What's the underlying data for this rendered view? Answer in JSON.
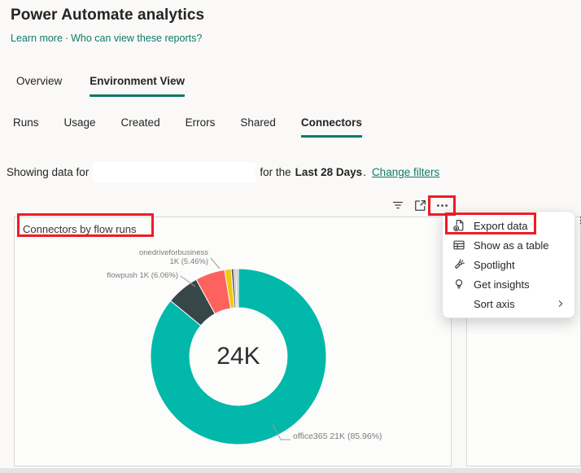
{
  "theme": {
    "accent": "#0e7a68",
    "annotation_red": "#ed1c24",
    "page_background": "#faf9f8",
    "panel_border": "#d8d8d8"
  },
  "header": {
    "title": "Power Automate analytics",
    "learn_more": "Learn more",
    "dot": "·",
    "who_can_view": "Who can view these reports?"
  },
  "tabs": {
    "overview": "Overview",
    "environment_view": "Environment View",
    "active": "Environment View"
  },
  "subtabs": {
    "runs": "Runs",
    "usage": "Usage",
    "created": "Created",
    "errors": "Errors",
    "shared": "Shared",
    "connectors": "Connectors",
    "active": "Connectors"
  },
  "filter_bar": {
    "prefix": "Showing data for",
    "environment_redacted": true,
    "middle": "for the",
    "range": "Last 28 Days",
    "period": ".",
    "change_filters": "Change filters"
  },
  "visual_toolbar": {
    "icons": [
      "filter-icon",
      "focus-mode-icon",
      "more-options-icon"
    ]
  },
  "context_menu": {
    "items": [
      {
        "icon": "export-data-icon",
        "label": "Export data",
        "annotated": true
      },
      {
        "icon": "show-as-table-icon",
        "label": "Show as a table"
      },
      {
        "icon": "spotlight-icon",
        "label": "Spotlight"
      },
      {
        "icon": "lightbulb-icon",
        "label": "Get insights"
      },
      {
        "icon": null,
        "label": "Sort axis",
        "has_submenu": true
      }
    ]
  },
  "chart_data": {
    "type": "pie",
    "subtype": "donut",
    "title": "Connectors by flow runs",
    "center_label": "24K",
    "total": "24K",
    "inner_radius_ratio": 0.555,
    "labels_position": "outside",
    "legend": "none",
    "slices": [
      {
        "name": "office365",
        "value": "21K",
        "percent": 85.96,
        "color": "#01B8AA",
        "label": "office365 21K (85.96%)"
      },
      {
        "name": "flowpush",
        "value": "1K",
        "percent": 6.06,
        "color": "#374649",
        "label": "flowpush 1K (6.06%)"
      },
      {
        "name": "onedriveforbusiness",
        "value": "1K",
        "percent": 5.46,
        "color": "#FD625E",
        "label_line1": "onedriveforbusiness",
        "label_line2": "1K (5.46%)"
      },
      {
        "name": "unlabeled-small-1",
        "percent": 1.2,
        "color": "#F2C80F"
      },
      {
        "name": "unlabeled-small-2",
        "percent": 0.5,
        "color": "#5F6B6D"
      },
      {
        "name": "unlabeled-small-3",
        "percent": 0.35,
        "color": "#B3B3B1"
      },
      {
        "name": "unlabeled-small-4",
        "percent": 0.47,
        "color": "#DFBFBF"
      }
    ]
  }
}
